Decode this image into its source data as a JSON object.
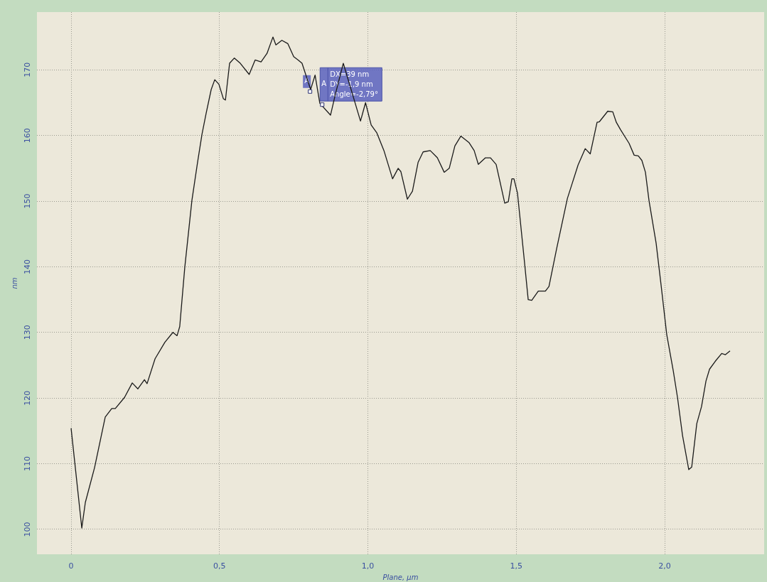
{
  "chart_data": {
    "type": "line",
    "xlabel": "Plane, µm",
    "ylabel": "nm",
    "xlim": [
      -0.115,
      2.335
    ],
    "ylim": [
      96.2,
      178.8
    ],
    "xticks": [
      0,
      {
        "value": 0.5,
        "label": "0,5"
      },
      {
        "value": 1,
        "label": "1,0"
      },
      {
        "value": 1.5,
        "label": "1,5"
      },
      {
        "value": 2,
        "label": "2,0"
      }
    ],
    "yticks": [
      100,
      110,
      120,
      130,
      140,
      150,
      160,
      170
    ],
    "grid": true,
    "legend": false,
    "marker": "none",
    "line_style": "solid",
    "series": [
      {
        "color": "#1a1a1a",
        "x": [
          0,
          0.036,
          0.048,
          0.079,
          0.115,
          0.137,
          0.149,
          0.18,
          0.206,
          0.225,
          0.247,
          0.256,
          0.283,
          0.316,
          0.343,
          0.357,
          0.366,
          0.383,
          0.407,
          0.426,
          0.441,
          0.455,
          0.472,
          0.484,
          0.498,
          0.513,
          0.52,
          0.534,
          0.55,
          0.57,
          0.6,
          0.62,
          0.64,
          0.66,
          0.68,
          0.69,
          0.71,
          0.73,
          0.75,
          0.765,
          0.778,
          0.807,
          0.822,
          0.838,
          0.874,
          0.891,
          0.917,
          0.975,
          0.992,
          1.011,
          1.03,
          1.054,
          1.083,
          1.102,
          1.111,
          1.133,
          1.15,
          1.169,
          1.186,
          1.21,
          1.234,
          1.257,
          1.274,
          1.293,
          1.313,
          1.341,
          1.358,
          1.372,
          1.396,
          1.413,
          1.432,
          1.461,
          1.473,
          1.485,
          1.492,
          1.504,
          1.526,
          1.54,
          1.552,
          1.574,
          1.598,
          1.61,
          1.636,
          1.672,
          1.689,
          1.708,
          1.732,
          1.749,
          1.772,
          1.78,
          1.808,
          1.825,
          1.837,
          1.851,
          1.88,
          1.897,
          1.911,
          1.923,
          1.935,
          1.947,
          1.971,
          1.988,
          2.007,
          2.029,
          2.043,
          2.06,
          2.081,
          2.091,
          2.108,
          2.124,
          2.139,
          2.151,
          2.172,
          2.192,
          2.204,
          2.22
        ],
        "values": [
          115.4,
          100.2,
          104.1,
          109.4,
          117.1,
          118.4,
          118.4,
          120.1,
          122.3,
          121.4,
          122.8,
          122.2,
          126,
          128.5,
          130,
          129.5,
          130.9,
          139.9,
          150.1,
          155.9,
          160.2,
          163.4,
          167,
          168.5,
          167.8,
          165.6,
          165.4,
          171,
          171.8,
          171,
          169.3,
          171.5,
          171.2,
          172.5,
          175,
          173.8,
          174.5,
          174,
          172,
          171.5,
          171,
          167,
          169.2,
          164.9,
          163.1,
          166.4,
          171,
          162.2,
          165,
          161.6,
          160.4,
          157.7,
          153.4,
          155,
          154.5,
          150.3,
          151.5,
          155.9,
          157.5,
          157.7,
          156.6,
          154.4,
          155,
          158.4,
          159.9,
          158.9,
          157.7,
          155.6,
          156.6,
          156.6,
          155.6,
          149.7,
          149.9,
          153.4,
          153.4,
          151.2,
          141.4,
          135,
          134.9,
          136.3,
          136.3,
          137,
          142.8,
          150.4,
          152.8,
          155.5,
          158,
          157.2,
          162,
          162.1,
          163.7,
          163.6,
          162,
          160.9,
          158.8,
          157,
          156.9,
          156.2,
          154.4,
          150.1,
          143.6,
          137.1,
          129.6,
          124.1,
          120.1,
          114.3,
          109.1,
          109.5,
          116.1,
          118.7,
          122.6,
          124.4,
          125.7,
          126.8,
          126.6,
          127.2
        ]
      }
    ],
    "annotations": [
      {
        "text": "A",
        "x": 0.805,
        "y": 166.7
      },
      {
        "text": "A",
        "x": 0.846,
        "y": 164.7
      },
      "DX=39 nm",
      "DY=-1,9 nm",
      "Angle=-2,79°"
    ]
  }
}
